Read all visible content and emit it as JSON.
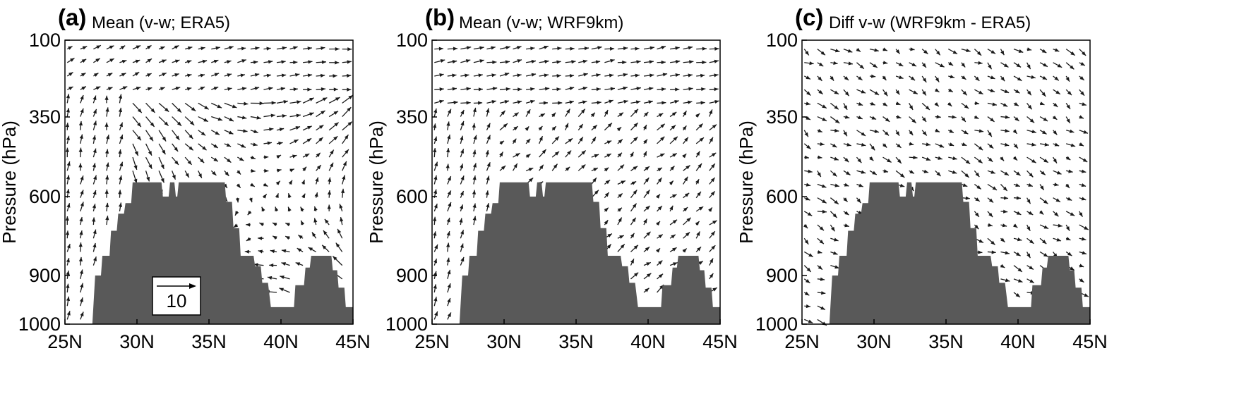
{
  "chart_data": [
    {
      "type": "vector",
      "panel_label": "(a)",
      "title": "Mean (v-w; ERA5)",
      "xlabel": "",
      "ylabel": "Pressure (hPa)",
      "x_tick_labels": [
        "25N",
        "30N",
        "35N",
        "40N",
        "45N"
      ],
      "x_ticks": [
        25,
        30,
        35,
        40,
        45
      ],
      "y_tick_labels": [
        "100",
        "350",
        "600",
        "900",
        "1000"
      ],
      "y_ticks": [
        100,
        350,
        600,
        900,
        1000
      ],
      "xlim": [
        25,
        45
      ],
      "ylim": [
        1000,
        100
      ],
      "reference_vector": {
        "label": "10",
        "value": 10
      },
      "field": "mean_era5"
    },
    {
      "type": "vector",
      "panel_label": "(b)",
      "title": "Mean (v-w; WRF9km)",
      "xlabel": "",
      "ylabel": "Pressure (hPa)",
      "x_tick_labels": [
        "25N",
        "30N",
        "35N",
        "40N",
        "45N"
      ],
      "x_ticks": [
        25,
        30,
        35,
        40,
        45
      ],
      "y_tick_labels": [
        "100",
        "350",
        "600",
        "900",
        "1000"
      ],
      "y_ticks": [
        100,
        350,
        600,
        900,
        1000
      ],
      "xlim": [
        25,
        45
      ],
      "ylim": [
        1000,
        100
      ],
      "field": "mean_wrf"
    },
    {
      "type": "vector",
      "panel_label": "(c)",
      "title": "Diff v-w (WRF9km - ERA5)",
      "xlabel": "",
      "ylabel": "Pressure (hPa)",
      "x_tick_labels": [
        "25N",
        "30N",
        "35N",
        "40N",
        "45N"
      ],
      "x_ticks": [
        25,
        30,
        35,
        40,
        45
      ],
      "y_tick_labels": [
        "100",
        "350",
        "600",
        "900",
        "1000"
      ],
      "y_ticks": [
        100,
        350,
        600,
        900,
        1000
      ],
      "xlim": [
        25,
        45
      ],
      "ylim": [
        1000,
        100
      ],
      "field": "diff"
    }
  ],
  "terrain": {
    "color": "#595959",
    "profile": [
      [
        25.0,
        1000
      ],
      [
        26.9,
        1000
      ],
      [
        27.1,
        900
      ],
      [
        27.5,
        900
      ],
      [
        27.6,
        825
      ],
      [
        28.1,
        825
      ],
      [
        28.2,
        730
      ],
      [
        28.6,
        730
      ],
      [
        28.7,
        665
      ],
      [
        29.1,
        665
      ],
      [
        29.2,
        625
      ],
      [
        29.6,
        625
      ],
      [
        29.7,
        555
      ],
      [
        31.7,
        555
      ],
      [
        31.8,
        600
      ],
      [
        32.2,
        600
      ],
      [
        32.3,
        555
      ],
      [
        32.6,
        555
      ],
      [
        32.7,
        600
      ],
      [
        32.8,
        600
      ],
      [
        32.9,
        555
      ],
      [
        36.1,
        555
      ],
      [
        36.2,
        620
      ],
      [
        36.6,
        620
      ],
      [
        36.7,
        720
      ],
      [
        37.1,
        720
      ],
      [
        37.2,
        825
      ],
      [
        38.1,
        825
      ],
      [
        38.2,
        865
      ],
      [
        38.6,
        865
      ],
      [
        38.7,
        915
      ],
      [
        39.1,
        915
      ],
      [
        39.3,
        965
      ],
      [
        40.9,
        965
      ],
      [
        41.0,
        920
      ],
      [
        41.6,
        920
      ],
      [
        41.7,
        870
      ],
      [
        42.0,
        870
      ],
      [
        42.1,
        825
      ],
      [
        43.5,
        825
      ],
      [
        43.6,
        880
      ],
      [
        43.9,
        880
      ],
      [
        44.0,
        925
      ],
      [
        44.4,
        925
      ],
      [
        44.5,
        965
      ],
      [
        45.0,
        965
      ],
      [
        45.0,
        1000
      ]
    ]
  },
  "colors": {
    "arrow": "#1a1a1a",
    "axis": "#000000",
    "background": "#ffffff"
  }
}
